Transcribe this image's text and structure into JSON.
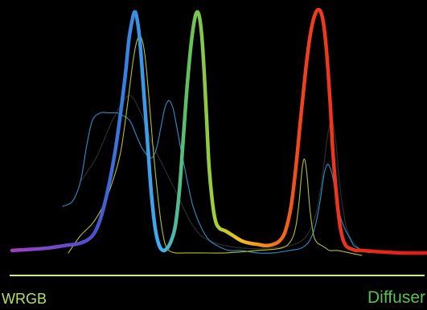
{
  "chart_data": {
    "type": "line",
    "title": "",
    "xlabel": "",
    "ylabel": "",
    "grid": false,
    "legend": "none",
    "axis_colors": {
      "baseline": "#c8f080"
    },
    "labels": [
      {
        "text": "WRGB",
        "color": "#b8e060"
      },
      {
        "text": "Diffuser",
        "color": "#5cc050"
      }
    ],
    "series": [
      {
        "role": "diffuser",
        "width": 4.5,
        "gradient": true,
        "colors": [
          [
            0.0,
            "#a040c0"
          ],
          [
            0.2,
            "#4a50d0"
          ],
          [
            0.27,
            "#3580e0"
          ],
          [
            0.36,
            "#40b0f0"
          ],
          [
            0.42,
            "#5cc060"
          ],
          [
            0.5,
            "#b0d030"
          ],
          [
            0.55,
            "#f0c020"
          ],
          [
            0.6,
            "#f09020"
          ],
          [
            0.7,
            "#f04020"
          ],
          [
            1.0,
            "#e01818"
          ]
        ],
        "x": [
          15,
          40,
          60,
          80,
          100,
          115,
          125,
          135,
          143,
          150,
          156,
          160,
          164,
          167,
          170,
          174,
          178,
          183,
          188,
          193,
          198,
          203,
          208,
          213,
          218,
          223,
          228,
          233,
          238,
          242,
          245,
          248,
          251,
          254,
          257,
          260,
          264,
          268,
          273,
          280,
          290,
          300,
          310,
          320,
          330,
          340,
          348,
          355,
          362,
          368,
          374,
          380,
          385,
          389,
          393,
          396,
          399,
          402,
          405,
          408,
          411,
          414,
          418,
          422,
          426,
          430,
          434,
          438,
          443,
          450,
          470,
          500,
          531
        ],
        "y": [
          0.02,
          0.025,
          0.03,
          0.04,
          0.05,
          0.08,
          0.15,
          0.28,
          0.42,
          0.58,
          0.74,
          0.87,
          0.95,
          0.99,
          0.97,
          0.87,
          0.7,
          0.48,
          0.26,
          0.11,
          0.04,
          0.02,
          0.03,
          0.06,
          0.12,
          0.26,
          0.48,
          0.7,
          0.87,
          0.96,
          0.99,
          0.97,
          0.89,
          0.74,
          0.55,
          0.36,
          0.22,
          0.14,
          0.11,
          0.1,
          0.08,
          0.06,
          0.05,
          0.045,
          0.04,
          0.045,
          0.06,
          0.1,
          0.2,
          0.36,
          0.56,
          0.75,
          0.88,
          0.95,
          0.99,
          1.0,
          0.99,
          0.95,
          0.87,
          0.75,
          0.6,
          0.42,
          0.26,
          0.14,
          0.07,
          0.04,
          0.03,
          0.025,
          0.02,
          0.02,
          0.015,
          0.01,
          0.01
        ]
      },
      {
        "role": "wrgb-yellow",
        "color": "#b8c020",
        "width": 1.1,
        "x": [
          85,
          100,
          115,
          128,
          140,
          150,
          158,
          165,
          170,
          175,
          180,
          185,
          190,
          195,
          200,
          205,
          210,
          218,
          230,
          250,
          280,
          320,
          350,
          362,
          368,
          372,
          376,
          379,
          382,
          385,
          388,
          391,
          395,
          400,
          405,
          410,
          420,
          435,
          450
        ],
        "y": [
          0.01,
          0.08,
          0.13,
          0.2,
          0.3,
          0.42,
          0.6,
          0.78,
          0.87,
          0.89,
          0.82,
          0.65,
          0.45,
          0.28,
          0.14,
          0.05,
          0.02,
          0.01,
          0.01,
          0.01,
          0.01,
          0.02,
          0.03,
          0.06,
          0.12,
          0.22,
          0.36,
          0.39,
          0.32,
          0.2,
          0.12,
          0.07,
          0.05,
          0.04,
          0.03,
          0.02,
          0.02,
          0.01,
          0.0
        ]
      },
      {
        "role": "wrgb-blue",
        "color": "#2a90d0",
        "width": 1.1,
        "x": [
          78,
          90,
          100,
          108,
          115,
          125,
          135,
          145,
          152,
          158,
          163,
          168,
          172,
          176,
          180,
          185,
          190,
          195,
          200,
          205,
          210,
          215,
          220,
          225,
          230,
          235,
          240,
          248,
          258,
          270,
          285,
          300,
          320,
          340,
          360,
          375,
          385,
          392,
          398,
          403,
          407,
          410,
          413,
          416,
          420,
          425,
          430,
          435,
          440,
          445,
          450,
          460
        ],
        "y": [
          0.2,
          0.22,
          0.3,
          0.45,
          0.55,
          0.58,
          0.58,
          0.58,
          0.57,
          0.56,
          0.54,
          0.5,
          0.47,
          0.44,
          0.42,
          0.4,
          0.4,
          0.44,
          0.52,
          0.6,
          0.63,
          0.6,
          0.52,
          0.43,
          0.35,
          0.27,
          0.2,
          0.13,
          0.07,
          0.04,
          0.02,
          0.02,
          0.01,
          0.01,
          0.02,
          0.03,
          0.06,
          0.12,
          0.22,
          0.33,
          0.37,
          0.36,
          0.33,
          0.28,
          0.2,
          0.14,
          0.1,
          0.07,
          0.04,
          0.03,
          0.02,
          0.01
        ]
      },
      {
        "role": "wrgb-dark",
        "color": "#2a2a2a",
        "width": 1.3,
        "x": [
          100,
          120,
          140,
          160,
          175,
          190,
          205,
          220,
          240,
          260,
          300,
          340,
          370,
          385,
          395,
          402,
          408,
          413,
          418,
          422,
          427,
          432,
          440,
          450
        ],
        "y": [
          0.3,
          0.4,
          0.55,
          0.65,
          0.58,
          0.45,
          0.35,
          0.25,
          0.12,
          0.06,
          0.03,
          0.03,
          0.05,
          0.1,
          0.2,
          0.35,
          0.5,
          0.55,
          0.45,
          0.3,
          0.18,
          0.1,
          0.05,
          0.02
        ]
      }
    ]
  }
}
